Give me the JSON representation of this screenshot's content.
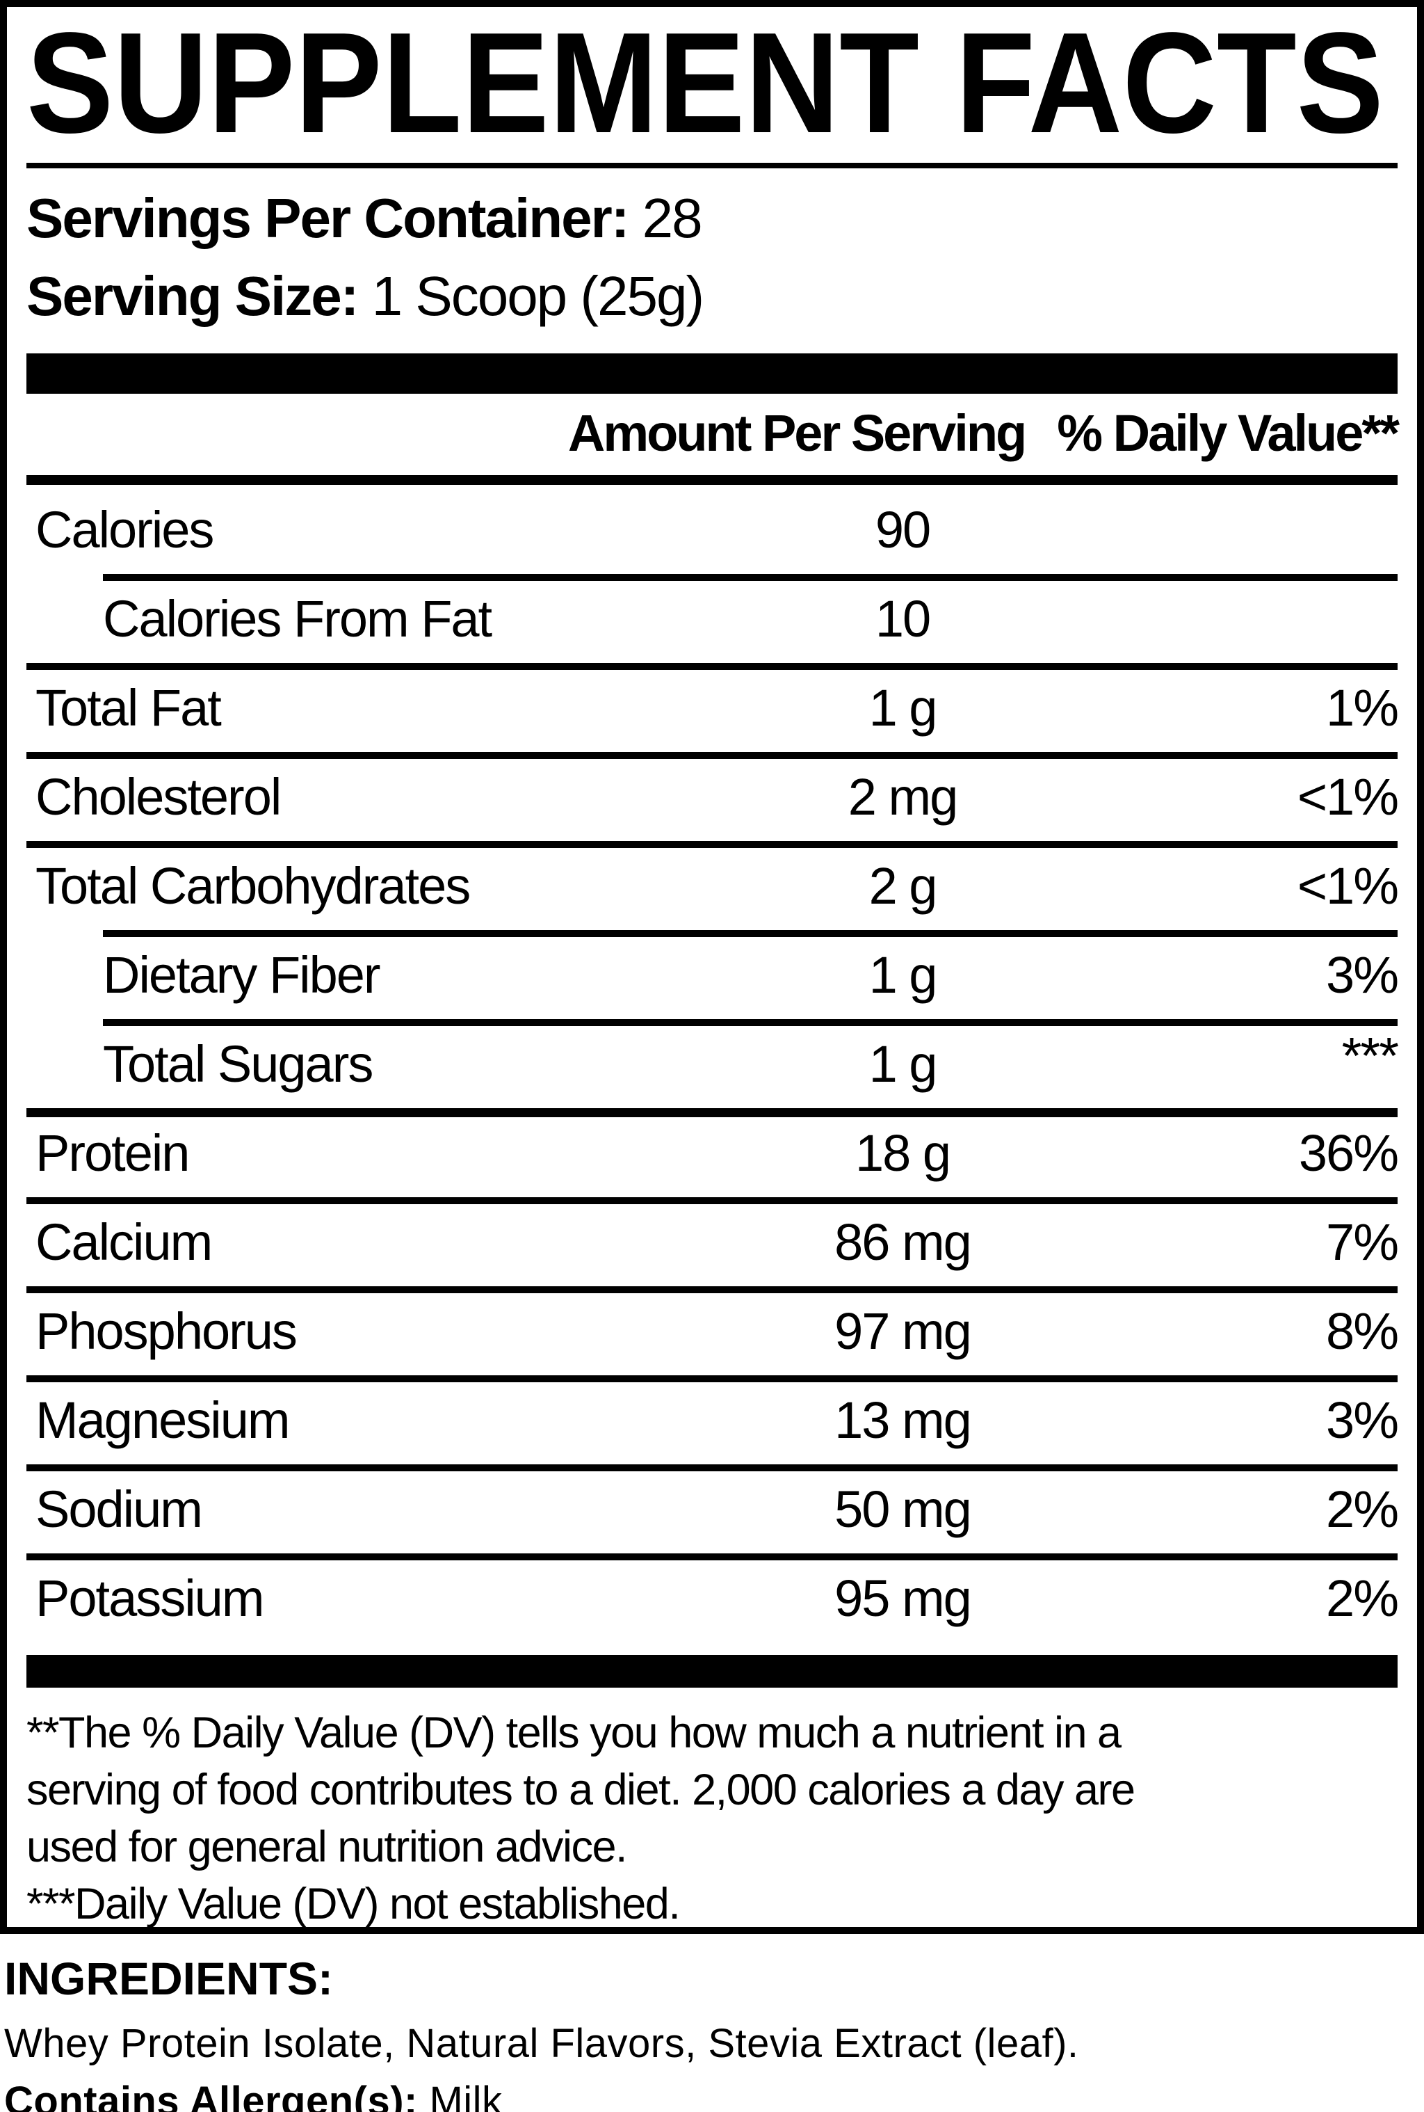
{
  "title": "SUPPLEMENT FACTS",
  "serving_info": {
    "servings_per_container_label": "Servings Per Container:",
    "servings_per_container_value": " 28",
    "serving_size_label": "Serving Size:",
    "serving_size_value": " 1 Scoop (25g)"
  },
  "table": {
    "col_amount": "Amount Per Serving",
    "col_dv": "% Daily Value**",
    "rows": [
      {
        "label": "Calories",
        "amount": "90",
        "dv": "",
        "rule": "none"
      },
      {
        "label": "Calories From Fat",
        "amount": "10",
        "dv": "",
        "rule": "indent",
        "indent": true
      },
      {
        "label": "Total Fat",
        "amount": "1 g",
        "dv": "1%",
        "rule": "full"
      },
      {
        "label": "Cholesterol",
        "amount": "2 mg",
        "dv": "<1%",
        "rule": "full"
      },
      {
        "label": "Total Carbohydrates",
        "amount": "2 g",
        "dv": "<1%",
        "rule": "full"
      },
      {
        "label": "Dietary Fiber",
        "amount": "1 g",
        "dv": "3%",
        "rule": "indent",
        "indent": true
      },
      {
        "label": "Total Sugars",
        "amount": "1 g",
        "dv": "***",
        "rule": "indent",
        "indent": true,
        "dv_super": true
      },
      {
        "label": "Protein",
        "amount": "18 g",
        "dv": "36%",
        "rule": "thick"
      },
      {
        "label": "Calcium",
        "amount": "86 mg",
        "dv": "7%",
        "rule": "full"
      },
      {
        "label": "Phosphorus",
        "amount": "97 mg",
        "dv": "8%",
        "rule": "full"
      },
      {
        "label": "Magnesium",
        "amount": "13 mg",
        "dv": "3%",
        "rule": "full"
      },
      {
        "label": "Sodium",
        "amount": "50 mg",
        "dv": "2%",
        "rule": "full"
      },
      {
        "label": "Potassium",
        "amount": "95 mg",
        "dv": "2%",
        "rule": "full"
      }
    ]
  },
  "footnotes": {
    "lines": [
      "**The % Daily Value (DV) tells you how much a nutrient in a",
      "serving of food contributes to a diet. 2,000 calories a day are",
      "used for general nutrition advice.",
      "***Daily Value (DV) not established."
    ]
  },
  "ingredients": {
    "heading": "INGREDIENTS:",
    "list": "Whey Protein Isolate, Natural Flavors, Stevia Extract (leaf).",
    "allergen_label": "Contains Allergen(s):",
    "allergen_value": " Milk"
  },
  "colors": {
    "ink": "#000000",
    "background": "#ffffff"
  }
}
